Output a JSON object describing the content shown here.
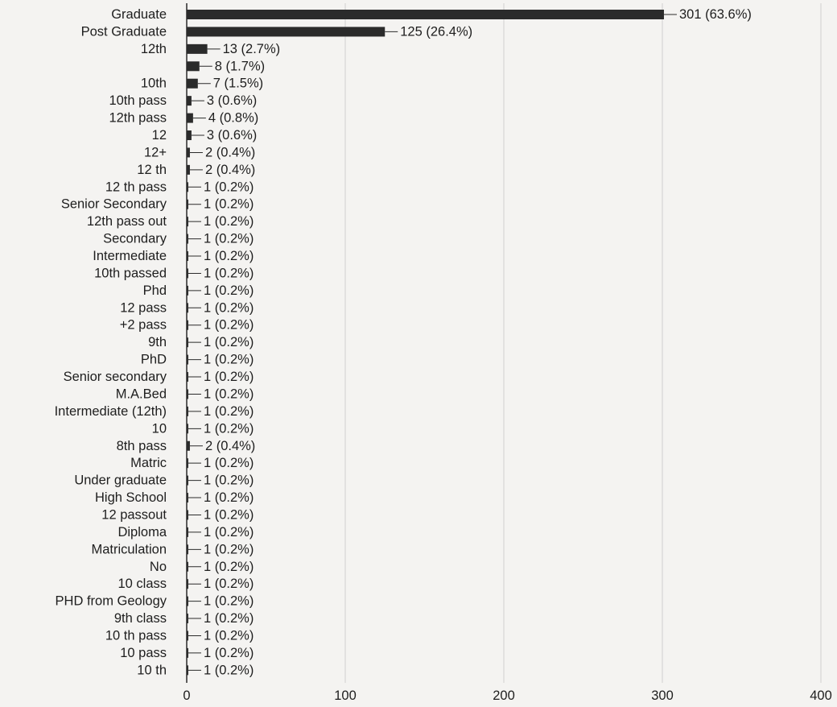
{
  "chart_data": {
    "type": "bar",
    "orientation": "horizontal",
    "categories": [
      "Graduate",
      "Post Graduate",
      "12th",
      "",
      "10th",
      "10th pass",
      "12th pass",
      "12",
      "12+",
      "12 th",
      "12 th pass",
      "Senior Secondary",
      "12th pass out",
      "Secondary",
      "Intermediate",
      "10th passed",
      "Phd",
      "12 pass",
      "+2 pass",
      "9th",
      "PhD",
      "Senior secondary",
      "M.A.Bed",
      "Intermediate (12th)",
      "10",
      "8th pass",
      "Matric",
      "Under graduate",
      "High School",
      "12 passout",
      "Diploma",
      "Matriculation",
      "No",
      "10 class",
      "PHD from Geology",
      "9th class",
      "10 th pass",
      "10 pass",
      "10 th"
    ],
    "values": [
      301,
      125,
      13,
      8,
      7,
      3,
      4,
      3,
      2,
      2,
      1,
      1,
      1,
      1,
      1,
      1,
      1,
      1,
      1,
      1,
      1,
      1,
      1,
      1,
      1,
      2,
      1,
      1,
      1,
      1,
      1,
      1,
      1,
      1,
      1,
      1,
      1,
      1,
      1
    ],
    "data_labels": [
      "301 (63.6%)",
      "125 (26.4%)",
      "13 (2.7%)",
      "8 (1.7%)",
      "7 (1.5%)",
      "3 (0.6%)",
      "4 (0.8%)",
      "3 (0.6%)",
      "2 (0.4%)",
      "2 (0.4%)",
      "1 (0.2%)",
      "1 (0.2%)",
      "1 (0.2%)",
      "1 (0.2%)",
      "1 (0.2%)",
      "1 (0.2%)",
      "1 (0.2%)",
      "1 (0.2%)",
      "1 (0.2%)",
      "1 (0.2%)",
      "1 (0.2%)",
      "1 (0.2%)",
      "1 (0.2%)",
      "1 (0.2%)",
      "1 (0.2%)",
      "2 (0.4%)",
      "1 (0.2%)",
      "1 (0.2%)",
      "1 (0.2%)",
      "1 (0.2%)",
      "1 (0.2%)",
      "1 (0.2%)",
      "1 (0.2%)",
      "1 (0.2%)",
      "1 (0.2%)",
      "1 (0.2%)",
      "1 (0.2%)",
      "1 (0.2%)",
      "1 (0.2%)"
    ],
    "x_ticks": [
      0,
      100,
      200,
      300,
      400
    ],
    "xlim": [
      0,
      400
    ],
    "grid": true,
    "title": "",
    "xlabel": "",
    "ylabel": "",
    "colors": {
      "bar": "#2b2b2b",
      "axis": "#2b2b2b",
      "grid": "#cfcfcf",
      "text": "#1e1e1e"
    }
  }
}
